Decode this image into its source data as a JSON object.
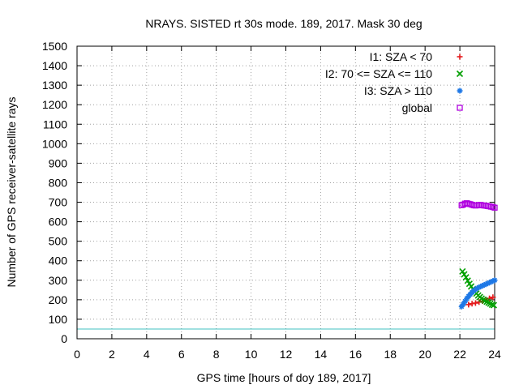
{
  "chart_data": {
    "type": "scatter",
    "title": "NRAYS. SISTED rt 30s mode. 189, 2017. Mask 30 deg",
    "xlabel": "GPS time [hours of doy 189, 2017]",
    "ylabel": "Number of GPS receiver-satellite rays",
    "xlim": [
      0,
      24
    ],
    "ylim": [
      0,
      1500
    ],
    "xticks": [
      0,
      2,
      4,
      6,
      8,
      10,
      12,
      14,
      16,
      18,
      20,
      22,
      24
    ],
    "yticks": [
      0,
      100,
      200,
      300,
      400,
      500,
      600,
      700,
      800,
      900,
      1000,
      1100,
      1200,
      1300,
      1400,
      1500
    ],
    "grid": true,
    "legend_position": "top-right",
    "reference_line": {
      "y": 50,
      "color": "#40c0c0"
    },
    "series": [
      {
        "name": "I1: SZA < 70",
        "marker": "plus",
        "color": "#e41a1c",
        "points": [
          [
            22.5,
            175
          ],
          [
            22.7,
            180
          ],
          [
            22.9,
            183
          ],
          [
            23.1,
            188
          ],
          [
            23.3,
            193
          ],
          [
            23.5,
            200
          ],
          [
            23.7,
            207
          ],
          [
            23.9,
            213
          ]
        ]
      },
      {
        "name": "I2: 70 <= SZA <= 110",
        "marker": "cross",
        "color": "#00a000",
        "points": [
          [
            22.15,
            345
          ],
          [
            22.25,
            330
          ],
          [
            22.35,
            315
          ],
          [
            22.45,
            298
          ],
          [
            22.55,
            282
          ],
          [
            22.65,
            268
          ],
          [
            22.75,
            255
          ],
          [
            22.85,
            242
          ],
          [
            22.95,
            232
          ],
          [
            23.05,
            222
          ],
          [
            23.15,
            214
          ],
          [
            23.25,
            206
          ],
          [
            23.35,
            200
          ],
          [
            23.45,
            195
          ],
          [
            23.55,
            190
          ],
          [
            23.65,
            185
          ],
          [
            23.75,
            180
          ],
          [
            23.85,
            175
          ],
          [
            23.95,
            172
          ]
        ]
      },
      {
        "name": "I3: SZA > 110",
        "marker": "star",
        "color": "#1e78e6",
        "points": [
          [
            22.1,
            165
          ],
          [
            22.2,
            178
          ],
          [
            22.3,
            192
          ],
          [
            22.4,
            206
          ],
          [
            22.5,
            218
          ],
          [
            22.6,
            228
          ],
          [
            22.7,
            238
          ],
          [
            22.8,
            246
          ],
          [
            22.9,
            253
          ],
          [
            23.0,
            259
          ],
          [
            23.1,
            264
          ],
          [
            23.2,
            268
          ],
          [
            23.3,
            272
          ],
          [
            23.4,
            276
          ],
          [
            23.5,
            280
          ],
          [
            23.6,
            284
          ],
          [
            23.7,
            288
          ],
          [
            23.8,
            292
          ],
          [
            23.9,
            296
          ],
          [
            24.0,
            300
          ]
        ]
      },
      {
        "name": "global",
        "marker": "square",
        "color": "#b000e0",
        "points": [
          [
            22.1,
            685
          ],
          [
            22.2,
            688
          ],
          [
            22.3,
            693
          ],
          [
            22.4,
            695
          ],
          [
            22.5,
            692
          ],
          [
            22.6,
            690
          ],
          [
            22.7,
            687
          ],
          [
            22.8,
            684
          ],
          [
            22.9,
            683
          ],
          [
            23.0,
            684
          ],
          [
            23.1,
            686
          ],
          [
            23.2,
            686
          ],
          [
            23.3,
            684
          ],
          [
            23.4,
            683
          ],
          [
            23.5,
            682
          ],
          [
            23.6,
            680
          ],
          [
            23.7,
            679
          ],
          [
            23.8,
            677
          ],
          [
            23.9,
            675
          ],
          [
            24.0,
            672
          ]
        ]
      }
    ]
  }
}
